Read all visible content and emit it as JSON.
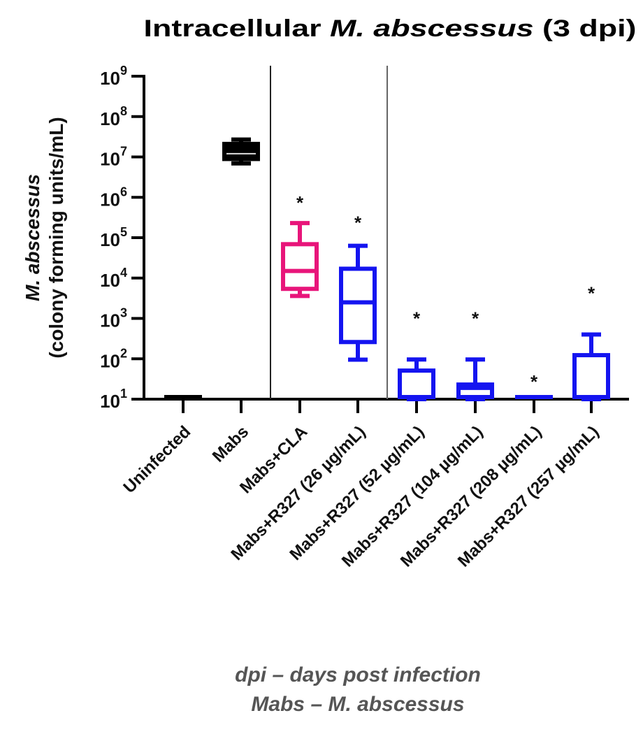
{
  "chart_data": {
    "type": "box",
    "title": "Intracellular M. abscessus (3 dpi)",
    "title_parts": {
      "pre": "Intracellular ",
      "italic": "M. abscessus",
      "post": " (3 dpi)"
    },
    "ylabel_line1": "M. abscessus",
    "ylabel_line2": "(colony forming units/mL)",
    "yscale": "log",
    "ylim": [
      10,
      1000000000
    ],
    "ytick_exponents": [
      "1",
      "2",
      "3",
      "4",
      "5",
      "6",
      "7",
      "8",
      "9"
    ],
    "ytick_base": "10",
    "grid": false,
    "categories": [
      "Uninfected",
      "Mabs",
      "Mabs+CLA",
      "Mabs+R327 (26 µg/mL)",
      "Mabs+R327 (52 µg/mL)",
      "Mabs+R327 (104 µg/mL)",
      "Mabs+R327 (208 µg/mL)",
      "Mabs+R327 (257 µg/mL)"
    ],
    "boxes": [
      {
        "min": 10,
        "q1": 10,
        "median": 10,
        "q3": 10,
        "max": 10,
        "color": "#000000",
        "significant": false
      },
      {
        "min": 6900000,
        "q1": 8900000,
        "median": 12000000,
        "q3": 21000000,
        "max": 27000000,
        "color": "#000000",
        "significant": false
      },
      {
        "min": 3600,
        "q1": 5400,
        "median": 15000,
        "q3": 69000,
        "max": 230000,
        "color": "#e8157a",
        "significant": true
      },
      {
        "min": 95,
        "q1": 260,
        "median": 2500,
        "q3": 17000,
        "max": 63000,
        "color": "#1414f0",
        "significant": true
      },
      {
        "min": 10,
        "q1": 10,
        "median": 10,
        "q3": 51,
        "max": 96,
        "color": "#1414f0",
        "significant": true
      },
      {
        "min": 10,
        "q1": 10,
        "median": 19,
        "q3": 23,
        "max": 96,
        "color": "#1414f0",
        "significant": true
      },
      {
        "min": 10,
        "q1": 10,
        "median": 10,
        "q3": 10,
        "max": 10,
        "color": "#1414f0",
        "significant": true
      },
      {
        "min": 10,
        "q1": 10,
        "median": 10,
        "q3": 123,
        "max": 400,
        "color": "#1414f0",
        "significant": true
      }
    ],
    "significance_marker": "*",
    "group_separators_after": [
      1,
      3
    ]
  },
  "footnotes": [
    "dpi – days post infection",
    "Mabs – M. abscessus"
  ]
}
